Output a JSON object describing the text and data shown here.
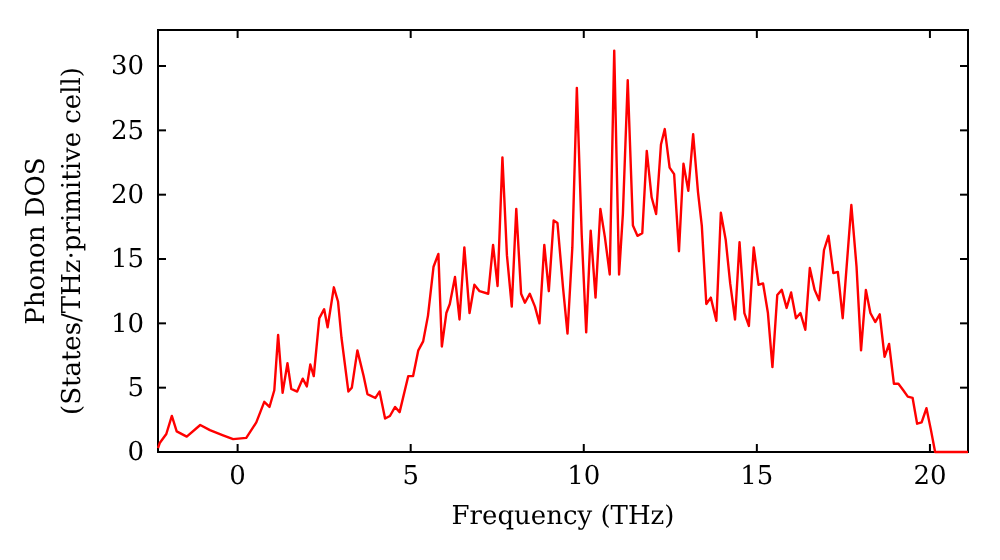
{
  "chart_data": {
    "type": "line",
    "xlabel": "Frequency (THz)",
    "ylabel": "Phonon DOS\n(States/THz·primitive cell)",
    "xlim": [
      -2.3,
      21.1
    ],
    "ylim": [
      0,
      32.8
    ],
    "xticks": [
      0,
      5,
      10,
      15,
      20
    ],
    "yticks": [
      0,
      5,
      10,
      15,
      20,
      25,
      30
    ],
    "grid": false,
    "marker": "none",
    "line_style": "solid",
    "series": [
      {
        "color": "#ff0000",
        "x": [
          -2.3,
          -2.25,
          -2.06,
          -1.9,
          -1.76,
          -1.47,
          -1.08,
          -0.8,
          -0.42,
          -0.13,
          0.25,
          0.54,
          0.77,
          0.92,
          1.06,
          1.17,
          1.3,
          1.44,
          1.55,
          1.72,
          1.88,
          2.0,
          2.1,
          2.2,
          2.36,
          2.5,
          2.6,
          2.78,
          2.9,
          3.0,
          3.2,
          3.3,
          3.46,
          3.64,
          3.75,
          3.98,
          4.1,
          4.26,
          4.4,
          4.55,
          4.68,
          4.93,
          5.07,
          5.22,
          5.36,
          5.5,
          5.66,
          5.8,
          5.9,
          6.03,
          6.13,
          6.28,
          6.41,
          6.55,
          6.7,
          6.84,
          6.99,
          7.24,
          7.38,
          7.51,
          7.65,
          7.78,
          7.92,
          8.05,
          8.19,
          8.3,
          8.44,
          8.59,
          8.72,
          8.86,
          8.99,
          9.13,
          9.24,
          9.4,
          9.53,
          9.67,
          9.8,
          9.94,
          10.07,
          10.2,
          10.34,
          10.48,
          10.61,
          10.75,
          10.88,
          11.02,
          11.13,
          11.27,
          11.42,
          11.55,
          11.69,
          11.82,
          11.96,
          12.09,
          12.23,
          12.34,
          12.48,
          12.61,
          12.75,
          12.88,
          13.02,
          13.16,
          13.3,
          13.41,
          13.54,
          13.67,
          13.83,
          13.96,
          14.1,
          14.23,
          14.37,
          14.5,
          14.64,
          14.77,
          14.91,
          15.05,
          15.18,
          15.32,
          15.45,
          15.59,
          15.72,
          15.86,
          15.99,
          16.13,
          16.26,
          16.4,
          16.53,
          16.67,
          16.8,
          16.94,
          17.07,
          17.21,
          17.34,
          17.48,
          17.73,
          17.88,
          18.01,
          18.15,
          18.28,
          18.42,
          18.55,
          18.69,
          18.82,
          18.96,
          19.09,
          19.23,
          19.36,
          19.5,
          19.63,
          19.76,
          19.9,
          20.03,
          20.15,
          21.1
        ],
        "values": [
          0.3,
          0.7,
          1.4,
          2.8,
          1.6,
          1.2,
          2.1,
          1.7,
          1.3,
          1.0,
          1.1,
          2.3,
          3.9,
          3.5,
          4.8,
          9.1,
          4.6,
          6.9,
          4.9,
          4.7,
          5.7,
          5.1,
          6.8,
          5.9,
          10.4,
          11.1,
          9.7,
          12.8,
          11.7,
          8.9,
          4.7,
          5.0,
          7.9,
          5.9,
          4.5,
          4.2,
          4.7,
          2.6,
          2.8,
          3.5,
          3.1,
          5.9,
          5.9,
          7.9,
          8.6,
          10.6,
          14.4,
          15.4,
          8.2,
          10.8,
          11.5,
          13.6,
          10.3,
          15.9,
          10.8,
          13.0,
          12.5,
          12.3,
          16.1,
          12.9,
          22.9,
          15.3,
          11.3,
          18.9,
          12.3,
          11.6,
          12.3,
          11.3,
          10.0,
          16.1,
          12.5,
          18.0,
          17.8,
          12.8,
          9.2,
          15.9,
          28.3,
          16.9,
          9.3,
          17.2,
          12.0,
          18.9,
          16.7,
          13.8,
          31.2,
          13.8,
          18.5,
          28.9,
          17.6,
          16.8,
          17.0,
          23.4,
          19.8,
          18.5,
          23.9,
          25.1,
          22.1,
          21.6,
          15.6,
          22.4,
          20.3,
          24.7,
          20.2,
          17.6,
          11.5,
          12.0,
          10.2,
          18.6,
          16.5,
          13.1,
          10.3,
          16.3,
          10.8,
          9.8,
          15.9,
          13.0,
          13.1,
          10.8,
          6.6,
          12.2,
          12.6,
          11.2,
          12.4,
          10.4,
          10.8,
          9.5,
          14.3,
          12.6,
          11.8,
          15.7,
          16.8,
          13.9,
          14.0,
          10.4,
          19.2,
          14.4,
          7.9,
          12.6,
          10.8,
          10.1,
          10.7,
          7.4,
          8.4,
          5.3,
          5.3,
          4.8,
          4.3,
          4.2,
          2.2,
          2.3,
          3.4,
          1.7,
          0,
          0
        ]
      }
    ]
  }
}
